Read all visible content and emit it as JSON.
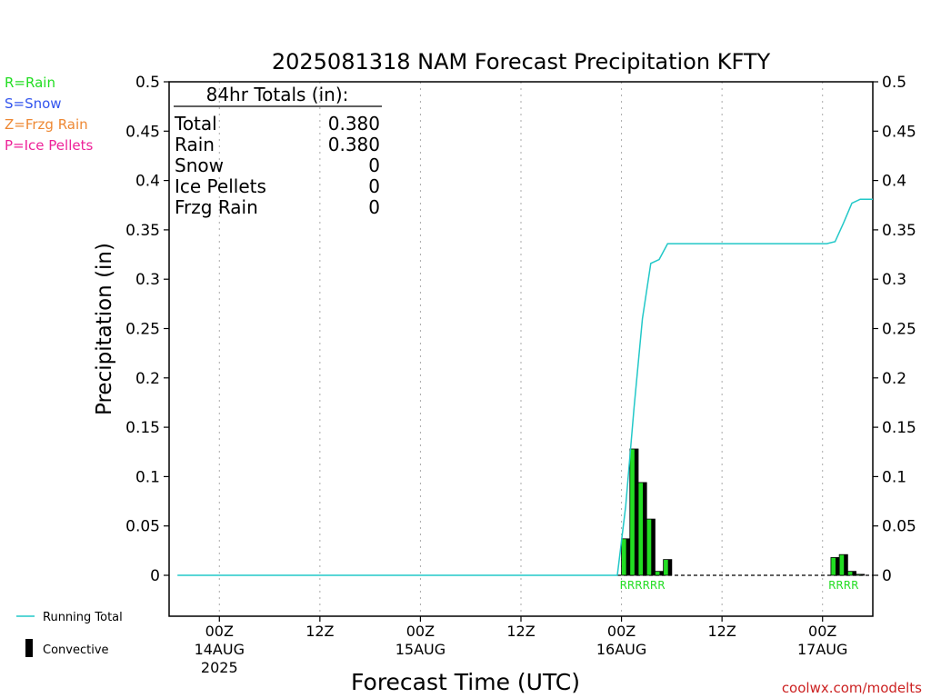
{
  "chart_data": {
    "type": "bar",
    "title": "2025081318 NAM Forecast Precipitation KFTY",
    "ylabel": "Precipitation (in)",
    "xlabel": "Forecast Time (UTC)",
    "ylim": [
      0,
      0.5
    ],
    "yticks": [
      "0",
      "0.05",
      "0.1",
      "0.15",
      "0.2",
      "0.25",
      "0.3",
      "0.35",
      "0.4",
      "0.45",
      "0.5"
    ],
    "xlim_hours": [
      -6,
      78
    ],
    "xticks": [
      {
        "hour": 0,
        "label": "00Z",
        "date": "14AUG",
        "year": "2025"
      },
      {
        "hour": 12,
        "label": "12Z",
        "date": "",
        "year": ""
      },
      {
        "hour": 24,
        "label": "00Z",
        "date": "15AUG",
        "year": ""
      },
      {
        "hour": 36,
        "label": "12Z",
        "date": "",
        "year": ""
      },
      {
        "hour": 48,
        "label": "00Z",
        "date": "16AUG",
        "year": ""
      },
      {
        "hour": 60,
        "label": "12Z",
        "date": "",
        "year": ""
      },
      {
        "hour": 72,
        "label": "00Z",
        "date": "17AUG",
        "year": ""
      }
    ],
    "grid": "vertical dotted",
    "legend_top_left": [
      {
        "text": "R=Rain",
        "color": "#22dd22"
      },
      {
        "text": "S=Snow",
        "color": "#3355ee"
      },
      {
        "text": "Z=Frzg Rain",
        "color": "#ee8833"
      },
      {
        "text": "P=Ice Pellets",
        "color": "#ee2299"
      }
    ],
    "legend_bottom_left": {
      "running_total": "Running Total",
      "convective": "Convective"
    },
    "totals_box": {
      "header": "84hr Totals (in):",
      "rows": [
        {
          "label": "Total",
          "value": "0.380"
        },
        {
          "label": "Rain",
          "value": "0.380"
        },
        {
          "label": "Snow",
          "value": "0"
        },
        {
          "label": "Ice Pellets",
          "value": "0"
        },
        {
          "label": "Frzg Rain",
          "value": "0"
        }
      ]
    },
    "bars": [
      {
        "hour": 48,
        "value": 0.037,
        "type": "R"
      },
      {
        "hour": 49,
        "value": 0.128,
        "type": "R"
      },
      {
        "hour": 50,
        "value": 0.094,
        "type": "R"
      },
      {
        "hour": 51,
        "value": 0.057,
        "type": "R"
      },
      {
        "hour": 52,
        "value": 0.004,
        "type": "R"
      },
      {
        "hour": 53,
        "value": 0.016,
        "type": "R"
      },
      {
        "hour": 73,
        "value": 0.018,
        "type": "R"
      },
      {
        "hour": 74,
        "value": 0.021,
        "type": "R"
      },
      {
        "hour": 75,
        "value": 0.004,
        "type": "R"
      },
      {
        "hour": 76,
        "value": 0.001,
        "type": "R"
      }
    ],
    "precip_type_labels": [
      {
        "text": "RRRRRR",
        "hour_center": 50.5
      },
      {
        "text": "RRRR",
        "hour_center": 74.5
      }
    ],
    "running_total": [
      [
        -5,
        0
      ],
      [
        47.5,
        0
      ],
      [
        48.5,
        0.07
      ],
      [
        49.5,
        0.17
      ],
      [
        50.5,
        0.26
      ],
      [
        51.5,
        0.316
      ],
      [
        52.5,
        0.32
      ],
      [
        53.5,
        0.336
      ],
      [
        72.5,
        0.336
      ],
      [
        73.5,
        0.338
      ],
      [
        74.5,
        0.357
      ],
      [
        75.5,
        0.377
      ],
      [
        76.5,
        0.381
      ],
      [
        78,
        0.381
      ]
    ],
    "colors": {
      "rain": "#22dd22",
      "convective": "#000000",
      "running_total": "#22c8c8",
      "grid": "#aaaaaa"
    }
  },
  "credit": "coolwx.com/modelts"
}
